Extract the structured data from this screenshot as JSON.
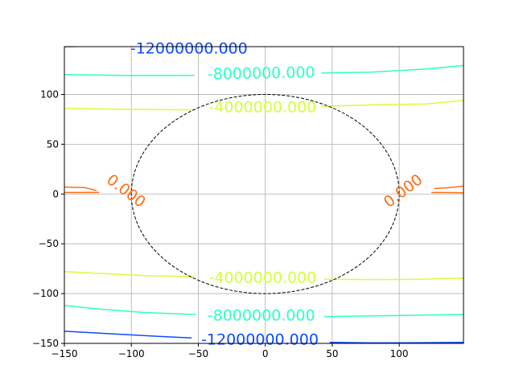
{
  "chart_data": {
    "type": "contour",
    "title": "",
    "xlabel": "",
    "ylabel": "",
    "xlim": [
      -150,
      148
    ],
    "ylim": [
      -150,
      148
    ],
    "x_ticks": [
      {
        "value": -150,
        "label": "−150"
      },
      {
        "value": -100,
        "label": "−100"
      },
      {
        "value": -50,
        "label": "−50"
      },
      {
        "value": 0,
        "label": "0"
      },
      {
        "value": 50,
        "label": "50"
      },
      {
        "value": 100,
        "label": "100"
      }
    ],
    "y_ticks": [
      {
        "value": 100,
        "label": "100"
      },
      {
        "value": 50,
        "label": "50"
      },
      {
        "value": 0,
        "label": "0"
      },
      {
        "value": -50,
        "label": "−50"
      },
      {
        "value": -100,
        "label": "−100"
      },
      {
        "value": -150,
        "label": "−150"
      }
    ],
    "grid": true,
    "levels": [
      {
        "level": -12000000,
        "label": "-12000000.000",
        "color": "#0d4bff",
        "lines": [
          [
            [
              -150,
              148
            ],
            [
              -120,
              148.5
            ],
            [
              -90,
              148.8
            ]
          ],
          [
            [
              -25,
              148.8
            ],
            [
              -10,
              148.6
            ]
          ],
          [
            [
              -150,
              -137.8
            ],
            [
              -120,
              -140
            ],
            [
              -80,
              -143
            ],
            [
              -55,
              -144.5
            ]
          ],
          [
            [
              48,
              -149
            ],
            [
              80,
              -149.5
            ],
            [
              120,
              -149.3
            ],
            [
              148,
              -149
            ]
          ]
        ]
      },
      {
        "level": -8000000,
        "label": "-8000000.000",
        "color": "#2effc4",
        "lines": [
          [
            [
              -150,
              120
            ],
            [
              -100,
              119
            ],
            [
              -53,
              119.2
            ]
          ],
          [
            [
              42,
              121.5
            ],
            [
              80,
              122.5
            ],
            [
              120,
              125.5
            ],
            [
              148,
              129
            ]
          ],
          [
            [
              -150,
              -112
            ],
            [
              -120,
              -116
            ],
            [
              -90,
              -119
            ],
            [
              -52,
              -121
            ]
          ],
          [
            [
              44,
              -123
            ],
            [
              80,
              -122.5
            ],
            [
              120,
              -121.5
            ],
            [
              148,
              -121
            ]
          ]
        ]
      },
      {
        "level": -4000000,
        "label": "-4000000.000",
        "color": "#d4ff3c",
        "lines": [
          [
            [
              -150,
              86
            ],
            [
              -100,
              85
            ],
            [
              -53,
              84.5
            ]
          ],
          [
            [
              42,
              88
            ],
            [
              80,
              89.5
            ],
            [
              120,
              90.5
            ],
            [
              148,
              94
            ]
          ],
          [
            [
              -150,
              -78
            ],
            [
              -120,
              -80
            ],
            [
              -90,
              -82
            ],
            [
              -53,
              -83
            ]
          ],
          [
            [
              44,
              -85.5
            ],
            [
              80,
              -86
            ],
            [
              120,
              -85.5
            ],
            [
              148,
              -84.5
            ]
          ]
        ]
      },
      {
        "level": 0,
        "label": "0.000",
        "color": "#ff6e14",
        "lines": [
          [
            [
              -150,
              7
            ],
            [
              -135,
              6.5
            ],
            [
              -126,
              3.5
            ]
          ],
          [
            [
              -150,
              1.5
            ],
            [
              -130,
              1.5
            ],
            [
              -124,
              1.5
            ]
          ],
          [
            [
              148,
              8
            ],
            [
              138,
              6.5
            ],
            [
              126,
              5.5
            ]
          ],
          [
            [
              148,
              1.2
            ],
            [
              134,
              1.5
            ],
            [
              124,
              1.5
            ]
          ]
        ]
      }
    ],
    "contour_labels": [
      {
        "text": "-12000000.000",
        "x": -57,
        "y": 146,
        "rotation": 0,
        "color": "#0d4bff"
      },
      {
        "text": "-8000000.000",
        "x": -3,
        "y": 121,
        "rotation": -1,
        "color": "#2effc4"
      },
      {
        "text": "-4000000.000",
        "x": -2,
        "y": 87,
        "rotation": 0,
        "color": "#d4ff3c"
      },
      {
        "text": "-4000000.000",
        "x": -2,
        "y": -84,
        "rotation": 0,
        "color": "#d4ff3c"
      },
      {
        "text": "-8000000.000",
        "x": -3,
        "y": -122,
        "rotation": 0,
        "color": "#2effc4"
      },
      {
        "text": "-12000000.000",
        "x": -4,
        "y": -146.5,
        "rotation": 0,
        "color": "#0d4bff"
      },
      {
        "text": "0.000",
        "x": -104,
        "y": 3,
        "rotation": 37,
        "color": "#ff6e14"
      },
      {
        "text": "0.000",
        "x": 103,
        "y": 3,
        "rotation": -37,
        "color": "#ff6e14"
      }
    ],
    "circle": {
      "center": [
        0,
        0
      ],
      "radius": 100,
      "style": "dashed",
      "color": "#000000"
    }
  }
}
